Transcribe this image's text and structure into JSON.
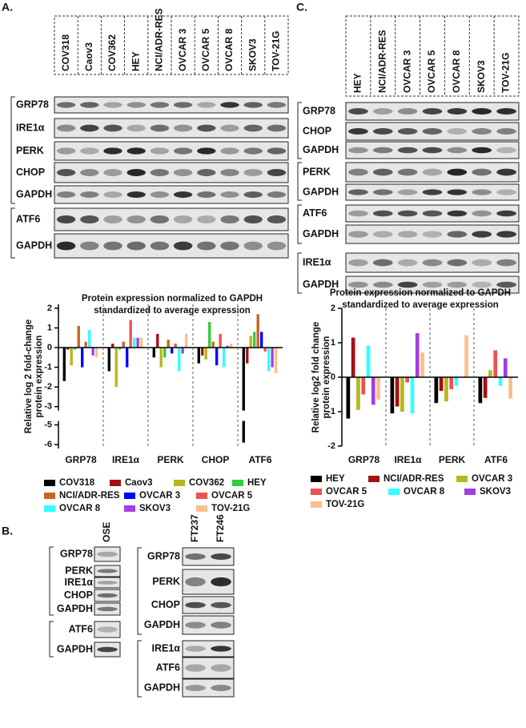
{
  "panel_a": {
    "label": "A.",
    "lanes": [
      "COV318",
      "Caov3",
      "COV362",
      "HEY",
      "NCI/ADR-RES",
      "OVCAR 3",
      "OVCAR 5",
      "OVCAR 8",
      "SKOV3",
      "TOV-21G"
    ],
    "rows": [
      "GRP78",
      "IRE1α",
      "PERK",
      "CHOP",
      "GAPDH",
      "ATF6",
      "GAPDH"
    ]
  },
  "panel_b": {
    "label": "B.",
    "left": {
      "lanes": [
        "OSE"
      ],
      "rows": [
        "GRP78",
        "PERK",
        "IRE1α",
        "CHOP",
        "GAPDH",
        "ATF6",
        "GAPDH"
      ]
    },
    "right": {
      "lanes": [
        "FT237",
        "FT246"
      ],
      "rows": [
        "GRP78",
        "PERK",
        "CHOP",
        "GAPDH",
        "IRE1α",
        "ATF6",
        "GAPDH"
      ]
    }
  },
  "panel_c": {
    "label": "C.",
    "lanes": [
      "HEY",
      "NCI/ADR-RES",
      "OVCAR 3",
      "OVCAR 5",
      "OVCAR 8",
      "SKOV3",
      "TOV-21G"
    ],
    "rows": [
      "GRP78",
      "CHOP",
      "GAPDH",
      "PERK",
      "GAPDH",
      "ATF6",
      "GAPDH",
      "IRE1α",
      "GAPDH"
    ]
  },
  "chart_data": [
    {
      "type": "bar",
      "title": [
        "Protein expression normalized to GAPDH",
        "standardized to average expression"
      ],
      "ylabel": [
        "Relative log 2 fold-change",
        "protein expression"
      ],
      "categories": [
        "GRP78",
        "IRE1α",
        "PERK",
        "CHOP",
        "ATF6"
      ],
      "ylim": [
        -6.2,
        2.2
      ],
      "y_break": [
        -3.2,
        -4.8
      ],
      "yticks": [
        2,
        1,
        0,
        -1,
        -2,
        -3,
        -5,
        -6
      ],
      "grid": false,
      "series": [
        {
          "name": "COV318",
          "color": "#000000",
          "values": [
            -1.7,
            -1.2,
            -0.5,
            -0.8,
            -5.9
          ]
        },
        {
          "name": "Caov3",
          "color": "#a50f15",
          "values": [
            -0.1,
            0.2,
            0.7,
            -0.4,
            -0.8
          ]
        },
        {
          "name": "COV362",
          "color": "#b5b81a",
          "values": [
            -0.9,
            -2.0,
            -1.0,
            -0.6,
            0.6
          ]
        },
        {
          "name": "HEY",
          "color": "#2ecc40",
          "values": [
            -0.1,
            -0.1,
            -0.5,
            1.3,
            0.8
          ]
        },
        {
          "name": "NCI/ADR-RES",
          "color": "#c8641e",
          "values": [
            1.1,
            0.3,
            0.4,
            0.3,
            1.7
          ]
        },
        {
          "name": "OVCAR 3",
          "color": "#0000ff",
          "values": [
            -1.0,
            -1.0,
            -0.3,
            -0.9,
            0.8
          ]
        },
        {
          "name": "OVCAR 5",
          "color": "#f05050",
          "values": [
            0.3,
            1.4,
            0.2,
            0.7,
            -0.2
          ]
        },
        {
          "name": "OVCAR 8",
          "color": "#33ffff",
          "values": [
            0.9,
            0.5,
            -1.2,
            -1.0,
            -1.2
          ]
        },
        {
          "name": "SKOV3",
          "color": "#a040e0",
          "values": [
            -0.4,
            0.5,
            -0.3,
            0.1,
            -1.0
          ]
        },
        {
          "name": "TOV-21G",
          "color": "#f9c08a",
          "values": [
            -0.5,
            0.5,
            0.7,
            0.2,
            -1.3
          ]
        }
      ]
    },
    {
      "type": "bar",
      "title": [
        "Protein expression normalized to GAPDH",
        "standardized to average expression"
      ],
      "ylabel": [
        "Relative log2 fold change",
        "protein expression"
      ],
      "categories": [
        "GRP78",
        "IRE1α",
        "PERK",
        "ATF6"
      ],
      "ylim": [
        -2,
        2
      ],
      "yticks": [
        2,
        1,
        0,
        -1,
        -2
      ],
      "grid": false,
      "series": [
        {
          "name": "HEY",
          "color": "#000000",
          "values": [
            -1.2,
            -1.05,
            -0.75,
            -0.75
          ]
        },
        {
          "name": "NCI/ADR-RES",
          "color": "#a50f15",
          "values": [
            1.15,
            -0.85,
            -0.4,
            -0.6
          ]
        },
        {
          "name": "OVCAR 3",
          "color": "#b5b81a",
          "values": [
            -0.95,
            -1.0,
            -0.7,
            0.2
          ]
        },
        {
          "name": "OVCAR 5",
          "color": "#f05050",
          "values": [
            -0.5,
            -0.15,
            -0.35,
            0.78
          ]
        },
        {
          "name": "OVCAR 8",
          "color": "#33ffff",
          "values": [
            0.92,
            -1.05,
            -0.25,
            -0.25
          ]
        },
        {
          "name": "SKOV3",
          "color": "#a040e0",
          "values": [
            -0.8,
            1.28,
            0,
            0.55
          ]
        },
        {
          "name": "TOV-21G",
          "color": "#f9c08a",
          "values": [
            -0.65,
            0.72,
            1.22,
            -0.62
          ]
        }
      ]
    }
  ]
}
